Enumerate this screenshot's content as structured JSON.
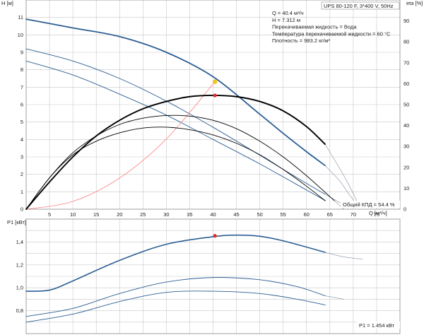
{
  "header": {
    "model": "UPS 80-120 F, 3*400 V, 50Hz"
  },
  "info_lines": [
    "Q = 40.4 м³/ч",
    "H = 7.312 м",
    "Перекачиваемая жидкость = Вода",
    "Температура перекачиваемой жидкости = 60 °C",
    "Плотность = 983.2 кг/м³"
  ],
  "colors": {
    "head_curve": "#2c5e93",
    "eff_curve": "#000000",
    "system_curve": "#ff6b6b",
    "duty_point": "#f5c518",
    "marker": "#e32b2b",
    "grid": "#c8c8c8"
  },
  "chart_data": [
    {
      "type": "line",
      "id": "head-efficiency",
      "xlabel": "Q [м³/ч]",
      "ylabel": "H [м]",
      "y2label": "eta [%]",
      "xlim": [
        0,
        80
      ],
      "ylim": [
        0,
        12
      ],
      "y2lim": [
        0,
        100
      ],
      "x_ticks": [
        5,
        10,
        15,
        20,
        25,
        30,
        35,
        40,
        45,
        50,
        55,
        60,
        65,
        70,
        75
      ],
      "y_ticks": [
        0,
        1,
        2,
        3,
        4,
        5,
        6,
        7,
        8,
        9,
        10,
        11
      ],
      "y2_ticks": [
        0,
        10,
        20,
        30,
        40,
        50,
        60,
        70,
        80,
        90
      ],
      "grid": true,
      "series": [
        {
          "role": "head-speed-3",
          "axis": "left",
          "width": 1.8,
          "x": [
            0,
            10,
            20,
            30,
            40,
            50,
            55,
            60,
            64
          ],
          "y": [
            10.9,
            10.4,
            9.9,
            9.0,
            7.6,
            5.45,
            4.35,
            3.3,
            2.5
          ]
        },
        {
          "role": "head-speed-3-ext",
          "axis": "left",
          "width": 0.6,
          "x": [
            64,
            67,
            69,
            71
          ],
          "y": [
            2.5,
            1.65,
            0.9,
            0.2
          ]
        },
        {
          "role": "head-speed-2",
          "axis": "left",
          "width": 0.9,
          "x": [
            0,
            10,
            20,
            30,
            40,
            50,
            58,
            64
          ],
          "y": [
            9.2,
            8.5,
            7.5,
            6.2,
            4.7,
            3.1,
            1.8,
            0.85
          ]
        },
        {
          "role": "head-speed-2-ext",
          "axis": "left",
          "width": 0.6,
          "x": [
            64,
            67,
            69
          ],
          "y": [
            0.85,
            0.4,
            0.1
          ]
        },
        {
          "role": "head-speed-1",
          "axis": "left",
          "width": 0.9,
          "x": [
            0,
            10,
            20,
            30,
            40,
            50,
            60,
            64
          ],
          "y": [
            8.5,
            7.7,
            6.6,
            5.4,
            4.0,
            2.6,
            1.1,
            0.5
          ]
        },
        {
          "role": "system-curve",
          "axis": "left",
          "width": 0.7,
          "x": [
            0,
            10,
            20,
            30,
            40.4
          ],
          "y": [
            0,
            0.45,
            1.79,
            4.03,
            7.312
          ]
        },
        {
          "role": "eff-speed-3",
          "axis": "right",
          "width": 1.9,
          "x": [
            0,
            5,
            10,
            15,
            20,
            25,
            30,
            35,
            40,
            45,
            50,
            55,
            60,
            64
          ],
          "y": [
            0,
            13,
            25,
            35,
            42.5,
            48,
            51.5,
            53.8,
            54.4,
            53.8,
            51.5,
            47,
            39.5,
            31
          ]
        },
        {
          "role": "eff-speed-3-ext",
          "axis": "right",
          "width": 0.6,
          "x": [
            64,
            68,
            71
          ],
          "y": [
            31,
            16,
            3
          ]
        },
        {
          "role": "eff-speed-2",
          "axis": "right",
          "width": 0.9,
          "x": [
            0,
            5,
            10,
            15,
            20,
            25,
            30,
            35,
            40,
            45,
            50,
            55,
            60,
            66
          ],
          "y": [
            0,
            15,
            27,
            35,
            40.5,
            43.5,
            44.8,
            44.5,
            42.5,
            38.5,
            32.5,
            25,
            16,
            4
          ]
        },
        {
          "role": "eff-speed-2-ext",
          "axis": "right",
          "width": 0.6,
          "x": [
            66,
            68
          ],
          "y": [
            4,
            0
          ]
        },
        {
          "role": "eff-speed-1",
          "axis": "right",
          "width": 0.9,
          "x": [
            0,
            5,
            10,
            15,
            20,
            25,
            30,
            35,
            40,
            45,
            50,
            55,
            60,
            64
          ],
          "y": [
            0,
            15,
            26,
            32.5,
            36.5,
            38.8,
            39.2,
            38,
            35.5,
            31.5,
            26,
            19,
            11,
            4
          ]
        }
      ],
      "points": [
        {
          "role": "duty-point",
          "x": 40.4,
          "y": 7.312,
          "axis": "left",
          "color": "#f5c518"
        },
        {
          "role": "efficiency-point",
          "x": 40.4,
          "y": 54.4,
          "axis": "right",
          "color": "#e32b2b"
        }
      ],
      "annotation": "Общий КПД = 54.4 %"
    },
    {
      "type": "line",
      "id": "power",
      "ylabel": "P1 [кВт]",
      "xlim": [
        0,
        80
      ],
      "ylim": [
        0.6,
        1.6
      ],
      "y_ticks": [
        0.8,
        1.0,
        1.2,
        1.4
      ],
      "y_tick_labels": [
        "0,8",
        "1,0",
        "1,2",
        "1,4"
      ],
      "grid": true,
      "series": [
        {
          "role": "power-speed-3",
          "axis": "left",
          "width": 1.6,
          "x": [
            0,
            5,
            10,
            20,
            30,
            40,
            45,
            50,
            55,
            64
          ],
          "y": [
            0.97,
            0.98,
            1.06,
            1.24,
            1.38,
            1.446,
            1.46,
            1.45,
            1.41,
            1.31
          ]
        },
        {
          "role": "power-speed-3-ext",
          "axis": "left",
          "width": 0.6,
          "x": [
            64,
            68,
            72
          ],
          "y": [
            1.31,
            1.27,
            1.25
          ]
        },
        {
          "role": "power-speed-2",
          "axis": "left",
          "width": 0.9,
          "x": [
            0,
            10,
            20,
            30,
            40,
            50,
            58,
            64
          ],
          "y": [
            0.75,
            0.82,
            0.95,
            1.05,
            1.09,
            1.07,
            1.01,
            0.93
          ]
        },
        {
          "role": "power-speed-2-ext",
          "axis": "left",
          "width": 0.6,
          "x": [
            64,
            68
          ],
          "y": [
            0.93,
            0.9
          ]
        },
        {
          "role": "power-speed-1",
          "axis": "left",
          "width": 0.9,
          "x": [
            0,
            10,
            20,
            30,
            40,
            50,
            58,
            64
          ],
          "y": [
            0.7,
            0.77,
            0.88,
            0.96,
            0.97,
            0.95,
            0.9,
            0.85
          ]
        }
      ],
      "points": [
        {
          "role": "power-point",
          "x": 40.4,
          "y": 1.454,
          "axis": "left",
          "color": "#e32b2b"
        }
      ],
      "annotation": "P1 = 1.454 кВт"
    }
  ]
}
